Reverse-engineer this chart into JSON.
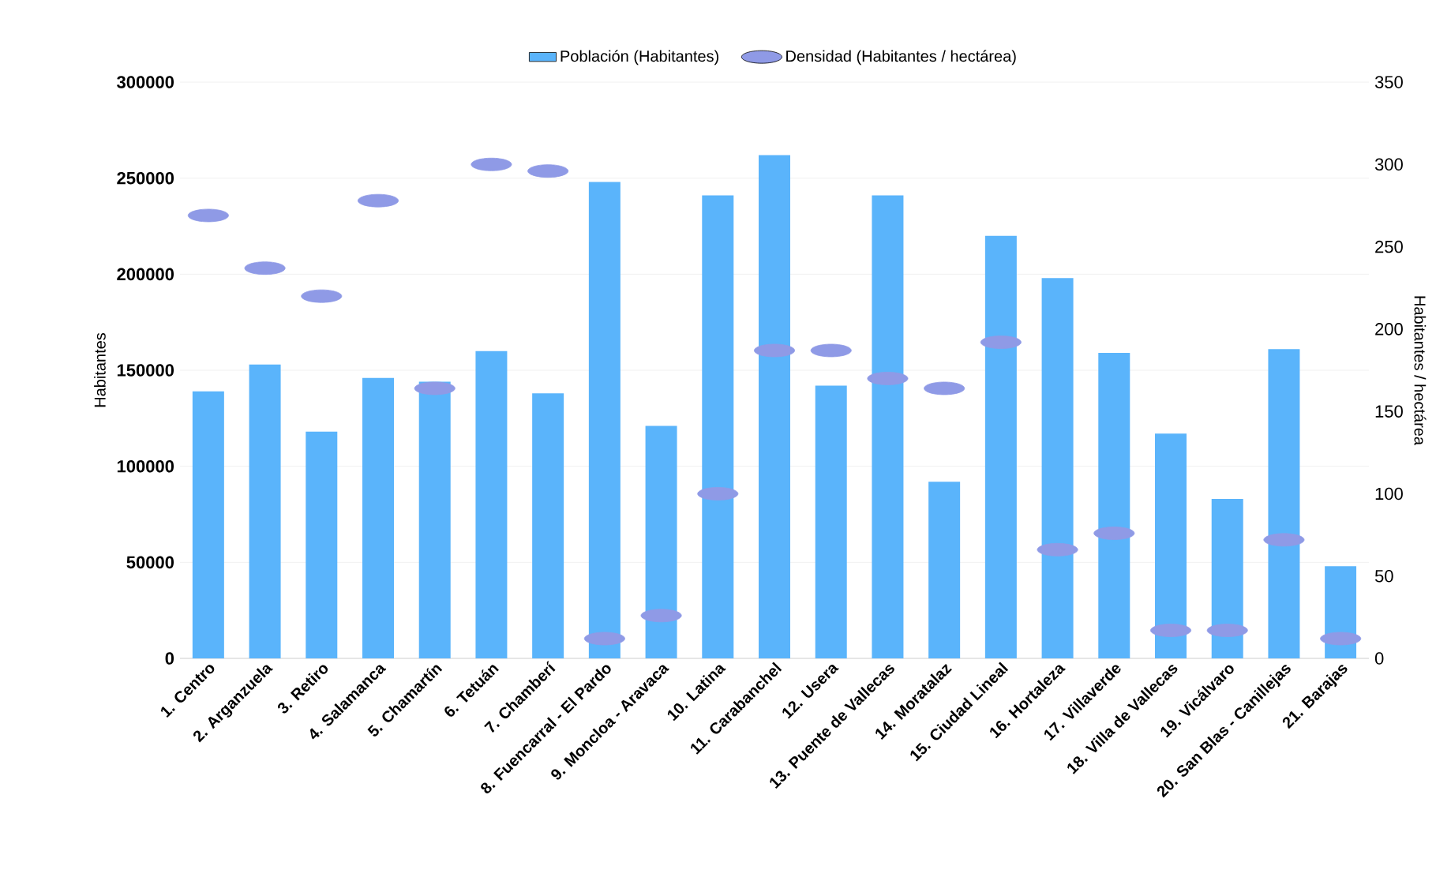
{
  "chart_data": {
    "type": "bar",
    "categories": [
      "1. Centro",
      "2. Arganzuela",
      "3. Retiro",
      "4. Salamanca",
      "5. Chamartín",
      "6. Tetuán",
      "7. Chamberí",
      "8. Fuencarral - El Pardo",
      "9. Moncloa - Aravaca",
      "10. Latina",
      "11. Carabanchel",
      "12. Usera",
      "13. Puente de Vallecas",
      "14. Moratalaz",
      "15. Ciudad Lineal",
      "16. Hortaleza",
      "17. Villaverde",
      "18. Villa de Vallecas",
      "19. Vicálvaro",
      "20. San Blas - Canillejas",
      "21. Barajas"
    ],
    "series": [
      {
        "name": "Población (Habitantes)",
        "color": "#5ab4fb",
        "values": [
          139000,
          153000,
          118000,
          146000,
          144000,
          160000,
          138000,
          248000,
          121000,
          241000,
          262000,
          142000,
          241000,
          92000,
          220000,
          198000,
          159000,
          117000,
          83000,
          161000,
          48000
        ]
      },
      {
        "name": "Densidad (Habitantes / hectárea)",
        "color": "#8f9ae6",
        "type": "scatter",
        "axis": "y2",
        "values": [
          269,
          237,
          220,
          278,
          164,
          300,
          296,
          12,
          26,
          100,
          187,
          187,
          170,
          164,
          192,
          66,
          76,
          17,
          17,
          72,
          12
        ]
      }
    ],
    "ylabel": "Habitantes",
    "y2label": "Habitantes / hectárea",
    "ylim": [
      0,
      300000
    ],
    "yticks": [
      0,
      50000,
      100000,
      150000,
      200000,
      250000,
      300000
    ],
    "y2lim": [
      0,
      350
    ],
    "y2ticks": [
      0,
      50,
      100,
      150,
      200,
      250,
      300,
      350
    ],
    "grid": "y",
    "legend": "top"
  }
}
